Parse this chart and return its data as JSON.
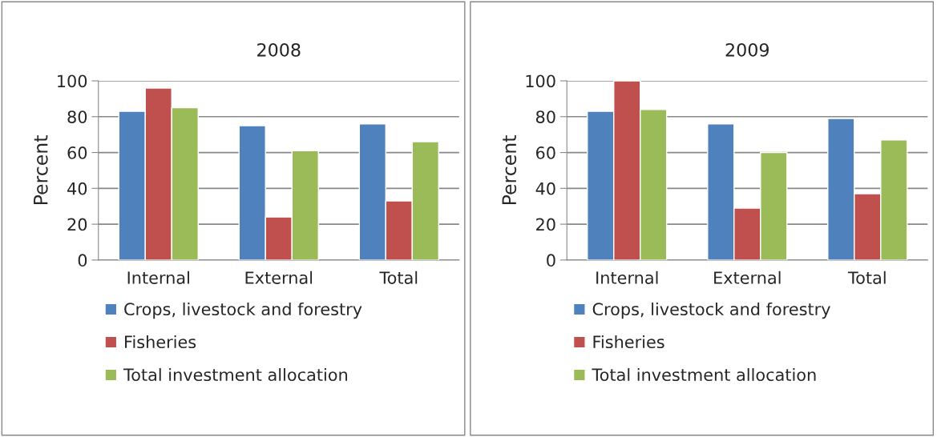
{
  "chart_data": [
    {
      "type": "bar",
      "title": "2008",
      "ylabel": "Percent",
      "categories": [
        "Internal",
        "External",
        "Total"
      ],
      "ylim": [
        0,
        100
      ],
      "yticks": [
        0,
        20,
        40,
        60,
        80,
        100
      ],
      "grid": "y",
      "legend": "bottom",
      "series": [
        {
          "name": "Crops, livestock and forestry",
          "color": "#4f81bd",
          "values": [
            83,
            75,
            76
          ]
        },
        {
          "name": "Fisheries",
          "color": "#c0504d",
          "values": [
            96,
            24,
            33
          ]
        },
        {
          "name": "Total investment allocation",
          "color": "#9bbb59",
          "values": [
            85,
            61,
            66
          ]
        }
      ]
    },
    {
      "type": "bar",
      "title": "2009",
      "ylabel": "Percent",
      "categories": [
        "Internal",
        "External",
        "Total"
      ],
      "ylim": [
        0,
        100
      ],
      "yticks": [
        0,
        20,
        40,
        60,
        80,
        100
      ],
      "grid": "y",
      "legend": "bottom",
      "series": [
        {
          "name": "Crops, livestock and forestry",
          "color": "#4f81bd",
          "values": [
            83,
            76,
            79
          ]
        },
        {
          "name": "Fisheries",
          "color": "#c0504d",
          "values": [
            100,
            29,
            37
          ]
        },
        {
          "name": "Total investment allocation",
          "color": "#9bbb59",
          "values": [
            84,
            60,
            67
          ]
        }
      ]
    }
  ]
}
